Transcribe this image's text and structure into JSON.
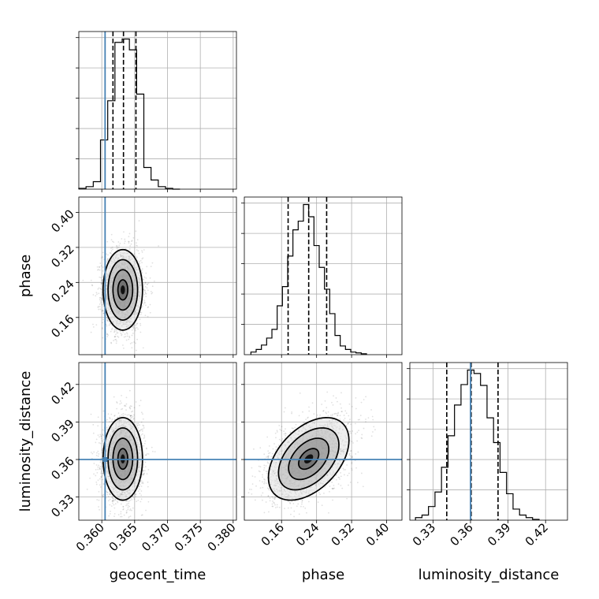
{
  "chart_data": {
    "type": "corner",
    "params": [
      "geocent_time",
      "phase",
      "luminosity_distance"
    ],
    "axes": {
      "geocent_time": {
        "label": "geocent_time",
        "range": [
          0.3565,
          0.3805
        ],
        "ticks": [
          "0.360",
          "0.365",
          "0.370",
          "0.375",
          "0.380"
        ],
        "tick_values": [
          0.36,
          0.365,
          0.37,
          0.375,
          0.38
        ]
      },
      "phase": {
        "label": "phase",
        "range": [
          0.075,
          0.435
        ],
        "ticks": [
          "0.16",
          "0.24",
          "0.32",
          "0.40"
        ],
        "tick_values": [
          0.16,
          0.24,
          0.32,
          0.4
        ]
      },
      "luminosity_distance": {
        "label": "luminosity_distance",
        "range": [
          0.3115,
          0.4375
        ],
        "ticks": [
          "0.33",
          "0.36",
          "0.39",
          "0.42"
        ],
        "tick_values": [
          0.33,
          0.36,
          0.39,
          0.42
        ]
      }
    },
    "truths": {
      "geocent_time": 0.3605,
      "luminosity_distance": 0.36
    },
    "truth_color": "#4682b4",
    "grid": true,
    "diagonal": [
      {
        "param": "geocent_time",
        "quantiles": [
          0.3617,
          0.3633,
          0.3652
        ],
        "bin_edges": [
          0.3565,
          0.3576,
          0.3587,
          0.3598,
          0.3609,
          0.362,
          0.3631,
          0.3642,
          0.3653,
          0.3664,
          0.3675,
          0.3686,
          0.3697,
          0.3708,
          0.3719
        ],
        "counts": [
          1,
          3,
          9,
          59,
          106,
          176,
          180,
          167,
          114,
          26,
          11,
          3,
          1,
          0
        ]
      },
      {
        "param": "phase",
        "quantiles": [
          0.175,
          0.222,
          0.263
        ],
        "bin_edges": [
          0.09,
          0.102,
          0.114,
          0.126,
          0.138,
          0.15,
          0.162,
          0.174,
          0.186,
          0.198,
          0.21,
          0.222,
          0.234,
          0.246,
          0.258,
          0.27,
          0.282,
          0.294,
          0.306,
          0.318,
          0.33,
          0.342,
          0.354
        ],
        "counts": [
          3,
          6,
          11,
          19,
          29,
          56,
          78,
          113,
          143,
          153,
          172,
          158,
          125,
          100,
          75,
          47,
          22,
          10,
          6,
          3,
          2,
          1
        ]
      },
      {
        "param": "luminosity_distance",
        "quantiles": [
          0.341,
          0.3605,
          0.382
        ],
        "bin_edges": [
          0.316,
          0.3212,
          0.3264,
          0.3316,
          0.3368,
          0.342,
          0.3472,
          0.3524,
          0.3576,
          0.3628,
          0.368,
          0.3732,
          0.3784,
          0.3836,
          0.3888,
          0.394,
          0.3992,
          0.4044,
          0.4096,
          0.4148
        ],
        "counts": [
          3,
          6,
          16,
          33,
          62,
          99,
          135,
          159,
          176,
          172,
          158,
          120,
          91,
          56,
          31,
          13,
          6,
          3,
          1
        ]
      }
    ],
    "panels_2d": [
      {
        "x": "geocent_time",
        "y": "phase",
        "mean": [
          0.3632,
          0.223
        ],
        "sd": [
          0.0015,
          0.046
        ],
        "rho": 0.0
      },
      {
        "x": "geocent_time",
        "y": "luminosity_distance",
        "mean": [
          0.3632,
          0.3605
        ],
        "sd": [
          0.0015,
          0.0165
        ],
        "rho": 0.0
      },
      {
        "x": "phase",
        "y": "luminosity_distance",
        "mean": [
          0.222,
          0.3605
        ],
        "sd": [
          0.046,
          0.0165
        ],
        "rho": 0.45
      }
    ],
    "contour_levels_sigma": [
      0.5,
      1.0,
      1.5,
      2.0
    ],
    "sample_count": 2500
  }
}
